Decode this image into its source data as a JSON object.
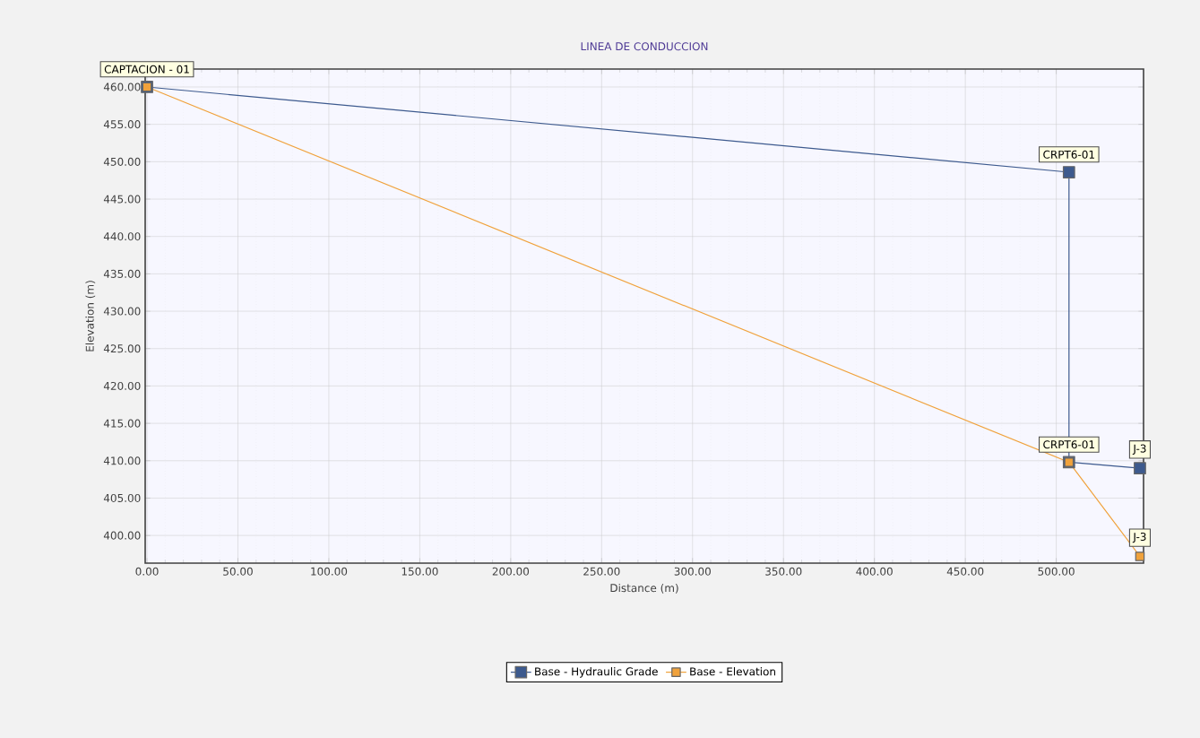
{
  "chart_data": {
    "type": "line",
    "title": "LINEA DE CONDUCCION",
    "xlabel": "Distance (m)",
    "ylabel": "Elevation (m)",
    "series": [
      {
        "name": "Base - Hydraulic Grade",
        "color": "#3d5a8e",
        "x": [
          0,
          507,
          507,
          546
        ],
        "values": [
          460.0,
          448.6,
          409.8,
          409.0
        ]
      },
      {
        "name": "Base - Elevation",
        "color": "#f0a23c",
        "x": [
          0,
          507,
          546
        ],
        "values": [
          460.0,
          409.8,
          397.2
        ]
      }
    ],
    "xlim": [
      -1,
      548
    ],
    "ylim": [
      396.3,
      462.4
    ],
    "xticks": [
      {
        "value": 0,
        "label": "0.00"
      },
      {
        "value": 50,
        "label": "50.00"
      },
      {
        "value": 100,
        "label": "100.00"
      },
      {
        "value": 150,
        "label": "150.00"
      },
      {
        "value": 200,
        "label": "200.00"
      },
      {
        "value": 250,
        "label": "250.00"
      },
      {
        "value": 300,
        "label": "300.00"
      },
      {
        "value": 350,
        "label": "350.00"
      },
      {
        "value": 400,
        "label": "400.00"
      },
      {
        "value": 450,
        "label": "450.00"
      },
      {
        "value": 500,
        "label": "500.00"
      }
    ],
    "yticks": [
      {
        "value": 400,
        "label": "400.00"
      },
      {
        "value": 405,
        "label": "405.00"
      },
      {
        "value": 410,
        "label": "410.00"
      },
      {
        "value": 415,
        "label": "415.00"
      },
      {
        "value": 420,
        "label": "420.00"
      },
      {
        "value": 425,
        "label": "425.00"
      },
      {
        "value": 430,
        "label": "430.00"
      },
      {
        "value": 435,
        "label": "435.00"
      },
      {
        "value": 440,
        "label": "440.00"
      },
      {
        "value": 445,
        "label": "445.00"
      },
      {
        "value": 450,
        "label": "450.00"
      },
      {
        "value": 455,
        "label": "455.00"
      },
      {
        "value": 460,
        "label": "460.00"
      }
    ],
    "annotations": [
      {
        "text": "CAPTACION - 01",
        "x": 0,
        "y": 460.0
      },
      {
        "text": "CRPT6-01",
        "x": 507,
        "y": 448.6
      },
      {
        "text": "CRPT6-01",
        "x": 507,
        "y": 409.8
      },
      {
        "text": "J-3",
        "x": 546,
        "y": 409.0
      },
      {
        "text": "J-3",
        "x": 546,
        "y": 397.2
      }
    ],
    "grid": true,
    "legend": "bottom",
    "marker": "square",
    "line_style": "solid"
  }
}
